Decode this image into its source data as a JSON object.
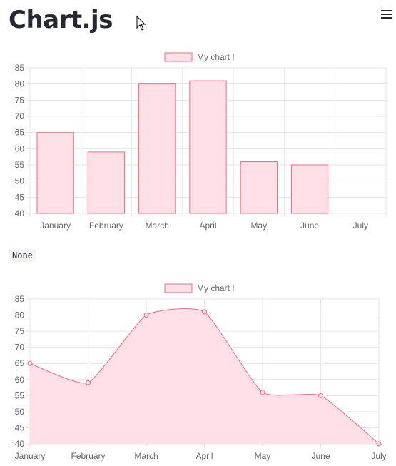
{
  "header": {
    "title": "Chart.js"
  },
  "code_output": "None",
  "chart_data": [
    {
      "type": "bar",
      "categories": [
        "January",
        "February",
        "March",
        "April",
        "May",
        "June",
        "July"
      ],
      "series": [
        {
          "name": "My chart !",
          "values": [
            65,
            59,
            80,
            81,
            56,
            55,
            40
          ]
        }
      ],
      "yticks": [
        "85",
        "80",
        "75",
        "70",
        "65",
        "60",
        "55",
        "50",
        "45",
        "40"
      ],
      "ylim": [
        40,
        85
      ],
      "grid": true,
      "legend": "top-center",
      "colors": {
        "fill": "#ffe0e6",
        "stroke": "#ff6384",
        "grid": "#e6e6e6"
      }
    },
    {
      "type": "area",
      "categories": [
        "January",
        "February",
        "March",
        "April",
        "May",
        "June",
        "July"
      ],
      "series": [
        {
          "name": "My chart !",
          "values": [
            65,
            59,
            80,
            81,
            56,
            55,
            40
          ]
        }
      ],
      "yticks": [
        "85",
        "80",
        "75",
        "70",
        "65",
        "60",
        "55",
        "50",
        "45",
        "40"
      ],
      "ylim": [
        40,
        85
      ],
      "grid": true,
      "legend": "top-center",
      "colors": {
        "fill": "#ffe0e6",
        "stroke": "#ff6384",
        "grid": "#e6e6e6"
      }
    }
  ]
}
